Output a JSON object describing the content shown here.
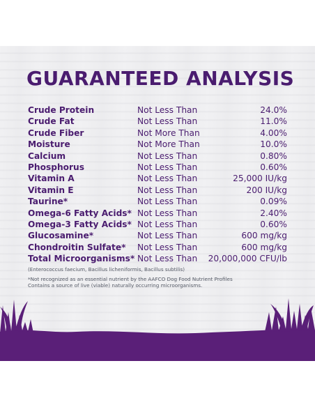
{
  "title": "GUARANTEED ANALYSIS",
  "rows": [
    {
      "nutrient": "Crude Protein",
      "qualifier": "Not Less Than",
      "value": "24.0%"
    },
    {
      "nutrient": "Crude Fat",
      "qualifier": "Not Less Than",
      "value": "11.0%"
    },
    {
      "nutrient": "Crude Fiber",
      "qualifier": "Not More Than",
      "value": "4.00%"
    },
    {
      "nutrient": "Moisture",
      "qualifier": "Not More Than",
      "value": "10.0%"
    },
    {
      "nutrient": "Calcium",
      "qualifier": "Not Less Than",
      "value": "0.80%"
    },
    {
      "nutrient": "Phosphorus",
      "qualifier": "Not Less Than",
      "value": "0.60%"
    },
    {
      "nutrient": "Vitamin A",
      "qualifier": "Not Less Than",
      "value": "25,000 IU/kg"
    },
    {
      "nutrient": "Vitamin E",
      "qualifier": "Not Less Than",
      "value": "200 IU/kg"
    },
    {
      "nutrient": "Taurine*",
      "qualifier": "Not Less Than",
      "value": "0.09%"
    },
    {
      "nutrient": "Omega-6 Fatty Acids*",
      "qualifier": "Not Less Than",
      "value": "2.40%"
    },
    {
      "nutrient": "Omega-3 Fatty Acids*",
      "qualifier": "Not Less Than",
      "value": "0.60%"
    },
    {
      "nutrient": "Glucosamine*",
      "qualifier": "Not Less Than",
      "value": "600 mg/kg"
    },
    {
      "nutrient": "Chondroitin Sulfate*",
      "qualifier": "Not Less Than",
      "value": "600 mg/kg"
    },
    {
      "nutrient": "Total Microorganisms*",
      "qualifier": "Not Less Than",
      "value": "20,000,000 CFU/lb"
    }
  ],
  "strains_note": "(Enterococcus faecium, Bacillus licheniformis, Bacillus subtilis)",
  "footnote_line1": "*Not recognized as an essential nutrient by the AAFCO Dog Food Nutrient Profiles",
  "footnote_line2": "Contains a source of live (viable) naturally occurring microorganisms.",
  "colors": {
    "brand_purple": "#4a1c6f",
    "grass_purple": "#5a1f78",
    "note_gray": "#555a66"
  }
}
